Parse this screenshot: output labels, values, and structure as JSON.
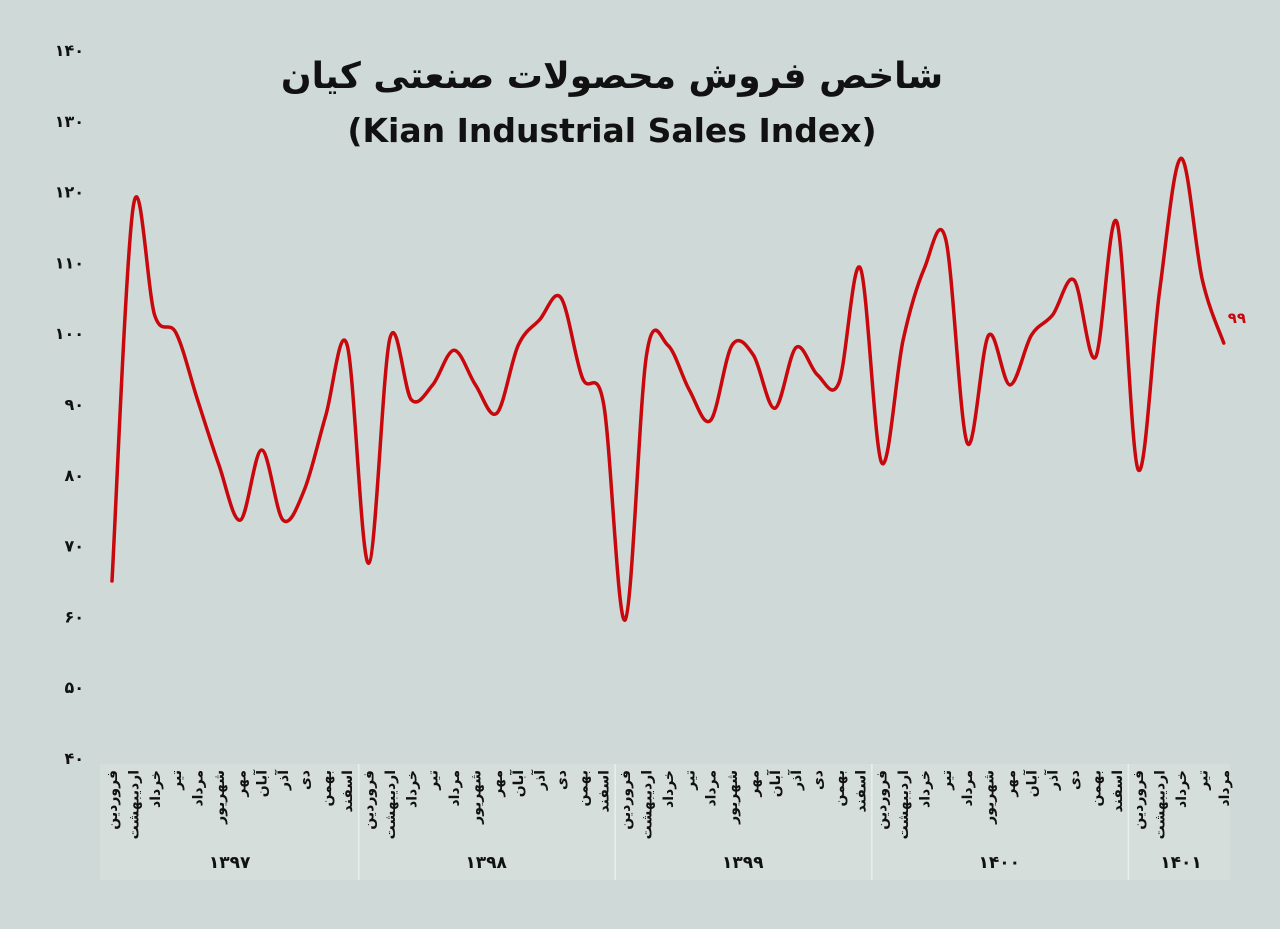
{
  "chart_data": {
    "type": "line",
    "title": "شاخص فروش محصولات صنعتی کیان",
    "subtitle": "(Kian Industrial Sales Index)",
    "ylim": [
      40,
      140
    ],
    "yticks": [
      140,
      130,
      120,
      110,
      100,
      90,
      80,
      70,
      60,
      50,
      40
    ],
    "ytick_labels": [
      "۱۴۰",
      "۱۳۰",
      "۱۲۰",
      "۱۱۰",
      "۱۰۰",
      "۹۰",
      "۸۰",
      "۷۰",
      "۶۰",
      "۵۰",
      "۴۰"
    ],
    "grid": false,
    "line_color": "#c8080c",
    "months": [
      "فروردین",
      "اردیبهشت",
      "خرداد",
      "تیر",
      "مرداد",
      "شهریور",
      "مهر",
      "آبان",
      "آذر",
      "دی",
      "بهمن",
      "اسفند"
    ],
    "years": [
      {
        "label": "۱۳۹۷",
        "values": [
          65,
          118,
          102.5,
          100,
          90.6,
          81.4,
          73.6,
          83.5,
          73.6,
          77.9,
          88.4,
          98.3
        ]
      },
      {
        "label": "۱۳۹۸",
        "values": [
          67.5,
          99.3,
          90.6,
          92.7,
          97.6,
          92.7,
          88.7,
          98.3,
          101.9,
          105,
          93.7,
          89.9
        ]
      },
      {
        "label": "۱۳۹۹",
        "values": [
          59.5,
          96.9,
          98.3,
          92,
          87.7,
          98.3,
          96.9,
          89.4,
          98,
          94.1,
          93,
          109.2
        ]
      },
      {
        "label": "۱۴۰۰",
        "values": [
          81.7,
          99,
          109.2,
          113.2,
          84.5,
          99.7,
          92.7,
          99.7,
          102.6,
          107.5,
          96.6,
          115.7
        ]
      },
      {
        "label": "۱۴۰۱",
        "values": [
          80.7,
          106,
          124.7,
          107.5,
          98.6
        ]
      }
    ],
    "last_value_label": "۹۹"
  }
}
